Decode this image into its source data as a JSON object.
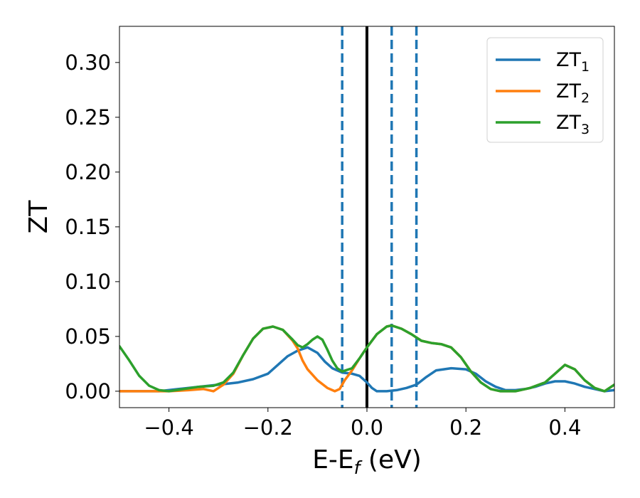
{
  "chart_data": {
    "type": "line",
    "title": "",
    "xlabel": {
      "main": "E-E",
      "sub": "f",
      "suffix": " (eV)"
    },
    "ylabel": "ZT",
    "xlim": [
      -0.5,
      0.5
    ],
    "ylim": [
      -0.015,
      0.333
    ],
    "x_ticks": [
      -0.4,
      -0.2,
      0.0,
      0.2,
      0.4
    ],
    "x_tick_labels": [
      "−0.4",
      "−0.2",
      "0.0",
      "0.2",
      "0.4"
    ],
    "y_ticks": [
      0.0,
      0.05,
      0.1,
      0.15,
      0.2,
      0.25,
      0.3
    ],
    "y_tick_labels": [
      "0.00",
      "0.05",
      "0.10",
      "0.15",
      "0.20",
      "0.25",
      "0.30"
    ],
    "grid": false,
    "legend_position": "top-right",
    "vertical_lines": [
      {
        "x": 0.0,
        "style": "solid",
        "color": "#000000"
      },
      {
        "x": -0.05,
        "style": "dashed",
        "color": "#1f77b4"
      },
      {
        "x": 0.05,
        "style": "dashed",
        "color": "#1f77b4"
      },
      {
        "x": 0.1,
        "style": "dashed",
        "color": "#1f77b4"
      }
    ],
    "series": [
      {
        "name": {
          "main": "ZT",
          "sub": "1"
        },
        "color": "#1f77b4",
        "points": [
          [
            -0.5,
            0.0
          ],
          [
            -0.45,
            0.0
          ],
          [
            -0.42,
            0.0
          ],
          [
            -0.38,
            0.002
          ],
          [
            -0.34,
            0.004
          ],
          [
            -0.3,
            0.006
          ],
          [
            -0.26,
            0.008
          ],
          [
            -0.23,
            0.011
          ],
          [
            -0.2,
            0.016
          ],
          [
            -0.18,
            0.024
          ],
          [
            -0.16,
            0.032
          ],
          [
            -0.14,
            0.037
          ],
          [
            -0.12,
            0.04
          ],
          [
            -0.1,
            0.035
          ],
          [
            -0.085,
            0.027
          ],
          [
            -0.07,
            0.021
          ],
          [
            -0.05,
            0.017
          ],
          [
            -0.03,
            0.016
          ],
          [
            -0.015,
            0.014
          ],
          [
            0.0,
            0.008
          ],
          [
            0.01,
            0.003
          ],
          [
            0.02,
            0.0
          ],
          [
            0.04,
            0.0
          ],
          [
            0.06,
            0.001
          ],
          [
            0.08,
            0.003
          ],
          [
            0.1,
            0.006
          ],
          [
            0.12,
            0.013
          ],
          [
            0.14,
            0.019
          ],
          [
            0.17,
            0.021
          ],
          [
            0.2,
            0.02
          ],
          [
            0.22,
            0.016
          ],
          [
            0.24,
            0.009
          ],
          [
            0.26,
            0.004
          ],
          [
            0.28,
            0.001
          ],
          [
            0.3,
            0.001
          ],
          [
            0.32,
            0.002
          ],
          [
            0.34,
            0.004
          ],
          [
            0.36,
            0.007
          ],
          [
            0.38,
            0.009
          ],
          [
            0.4,
            0.009
          ],
          [
            0.42,
            0.007
          ],
          [
            0.44,
            0.004
          ],
          [
            0.46,
            0.002
          ],
          [
            0.48,
            0.0
          ],
          [
            0.5,
            0.001
          ]
        ]
      },
      {
        "name": {
          "main": "ZT",
          "sub": "2"
        },
        "color": "#ff7f0e",
        "points": [
          [
            -0.5,
            0.0
          ],
          [
            -0.45,
            0.0
          ],
          [
            -0.4,
            0.0
          ],
          [
            -0.36,
            0.001
          ],
          [
            -0.33,
            0.002
          ],
          [
            -0.31,
            0.0
          ],
          [
            -0.29,
            0.006
          ],
          [
            -0.27,
            0.016
          ],
          [
            -0.25,
            0.033
          ],
          [
            -0.23,
            0.048
          ],
          [
            -0.21,
            0.057
          ],
          [
            -0.19,
            0.059
          ],
          [
            -0.17,
            0.056
          ],
          [
            -0.15,
            0.046
          ],
          [
            -0.14,
            0.039
          ],
          [
            -0.13,
            0.028
          ],
          [
            -0.12,
            0.02
          ],
          [
            -0.1,
            0.01
          ],
          [
            -0.08,
            0.003
          ],
          [
            -0.065,
            0.0
          ],
          [
            -0.055,
            0.002
          ],
          [
            -0.045,
            0.01
          ],
          [
            -0.03,
            0.019
          ],
          [
            -0.015,
            0.03
          ],
          [
            0.0,
            0.04
          ],
          [
            0.02,
            0.052
          ],
          [
            0.04,
            0.059
          ],
          [
            0.05,
            0.06
          ],
          [
            0.07,
            0.057
          ],
          [
            0.09,
            0.052
          ],
          [
            0.11,
            0.046
          ],
          [
            0.13,
            0.044
          ],
          [
            0.15,
            0.043
          ],
          [
            0.17,
            0.04
          ],
          [
            0.19,
            0.031
          ],
          [
            0.21,
            0.018
          ],
          [
            0.23,
            0.008
          ],
          [
            0.25,
            0.002
          ],
          [
            0.27,
            0.0
          ],
          [
            0.3,
            0.0
          ],
          [
            0.33,
            0.003
          ],
          [
            0.36,
            0.008
          ],
          [
            0.38,
            0.016
          ],
          [
            0.4,
            0.024
          ],
          [
            0.42,
            0.02
          ],
          [
            0.44,
            0.01
          ],
          [
            0.46,
            0.003
          ],
          [
            0.48,
            0.0
          ],
          [
            0.5,
            0.006
          ]
        ]
      },
      {
        "name": {
          "main": "ZT",
          "sub": "3"
        },
        "color": "#2ca02c",
        "points": [
          [
            -0.5,
            0.041
          ],
          [
            -0.48,
            0.028
          ],
          [
            -0.46,
            0.014
          ],
          [
            -0.44,
            0.005
          ],
          [
            -0.42,
            0.001
          ],
          [
            -0.4,
            0.0
          ],
          [
            -0.37,
            0.002
          ],
          [
            -0.34,
            0.004
          ],
          [
            -0.31,
            0.005
          ],
          [
            -0.29,
            0.008
          ],
          [
            -0.27,
            0.017
          ],
          [
            -0.25,
            0.033
          ],
          [
            -0.23,
            0.048
          ],
          [
            -0.21,
            0.057
          ],
          [
            -0.19,
            0.059
          ],
          [
            -0.17,
            0.056
          ],
          [
            -0.15,
            0.047
          ],
          [
            -0.14,
            0.042
          ],
          [
            -0.13,
            0.04
          ],
          [
            -0.12,
            0.043
          ],
          [
            -0.11,
            0.047
          ],
          [
            -0.1,
            0.05
          ],
          [
            -0.09,
            0.047
          ],
          [
            -0.08,
            0.038
          ],
          [
            -0.07,
            0.028
          ],
          [
            -0.06,
            0.021
          ],
          [
            -0.05,
            0.018
          ],
          [
            -0.03,
            0.021
          ],
          [
            -0.015,
            0.03
          ],
          [
            0.0,
            0.04
          ],
          [
            0.02,
            0.052
          ],
          [
            0.04,
            0.059
          ],
          [
            0.05,
            0.06
          ],
          [
            0.07,
            0.057
          ],
          [
            0.09,
            0.052
          ],
          [
            0.11,
            0.046
          ],
          [
            0.13,
            0.044
          ],
          [
            0.15,
            0.043
          ],
          [
            0.17,
            0.04
          ],
          [
            0.19,
            0.031
          ],
          [
            0.21,
            0.018
          ],
          [
            0.23,
            0.008
          ],
          [
            0.25,
            0.002
          ],
          [
            0.27,
            0.0
          ],
          [
            0.3,
            0.0
          ],
          [
            0.33,
            0.003
          ],
          [
            0.36,
            0.008
          ],
          [
            0.38,
            0.016
          ],
          [
            0.4,
            0.024
          ],
          [
            0.42,
            0.02
          ],
          [
            0.44,
            0.01
          ],
          [
            0.46,
            0.003
          ],
          [
            0.48,
            0.0
          ],
          [
            0.5,
            0.006
          ]
        ]
      }
    ]
  }
}
